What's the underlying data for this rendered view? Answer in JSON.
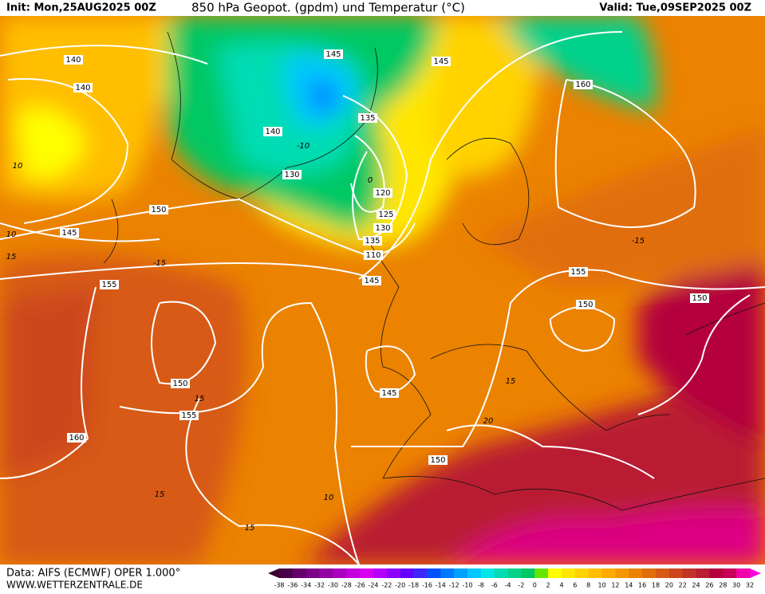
{
  "header": {
    "init": "Init: Mon,25AUG2025 00Z",
    "title": "850 hPa Geopot. (gpdm) und Temperatur (°C)",
    "valid": "Valid: Tue,09SEP2025 00Z"
  },
  "footer": {
    "source": "Data: AIFS (ECMWF) OPER 1.000°",
    "url": "WWW.WETTERZENTRALE.DE"
  },
  "colorbar": {
    "labels": [
      -38,
      -36,
      -34,
      -32,
      -30,
      -28,
      -26,
      -24,
      -22,
      -20,
      -18,
      -16,
      -14,
      -12,
      -10,
      -8,
      -6,
      -4,
      -2,
      0,
      2,
      4,
      6,
      8,
      10,
      12,
      14,
      16,
      18,
      20,
      22,
      24,
      26,
      28,
      30,
      32
    ],
    "colors": [
      "#4a0048",
      "#64006a",
      "#7c0088",
      "#9400a4",
      "#ac00c0",
      "#c400dc",
      "#d800f0",
      "#b400ff",
      "#8c00ff",
      "#6400ff",
      "#3c28ff",
      "#0050ff",
      "#0078ff",
      "#00a0ff",
      "#00c8ff",
      "#00e6e6",
      "#00dcb4",
      "#00d28c",
      "#00c864",
      "#64e600",
      "#ffff00",
      "#ffe600",
      "#ffd200",
      "#ffbe00",
      "#ffaa00",
      "#f59600",
      "#eb8200",
      "#e16e0a",
      "#d75a14",
      "#cd461e",
      "#c33228",
      "#b91e32",
      "#b4003c",
      "#c8005a",
      "#f000aa"
    ],
    "under_color": "#3c0030",
    "over_color": "#ff00e0"
  },
  "contour_labels": [
    140,
    140,
    145,
    145,
    135,
    140,
    130,
    120,
    125,
    130,
    135,
    110,
    145,
    150,
    145,
    155,
    160,
    155,
    150,
    150,
    155,
    150,
    145,
    150,
    160
  ],
  "isotherm_labels": [
    10,
    15,
    -15,
    10,
    -10,
    15,
    0,
    -15,
    15,
    20,
    15,
    10,
    15
  ]
}
